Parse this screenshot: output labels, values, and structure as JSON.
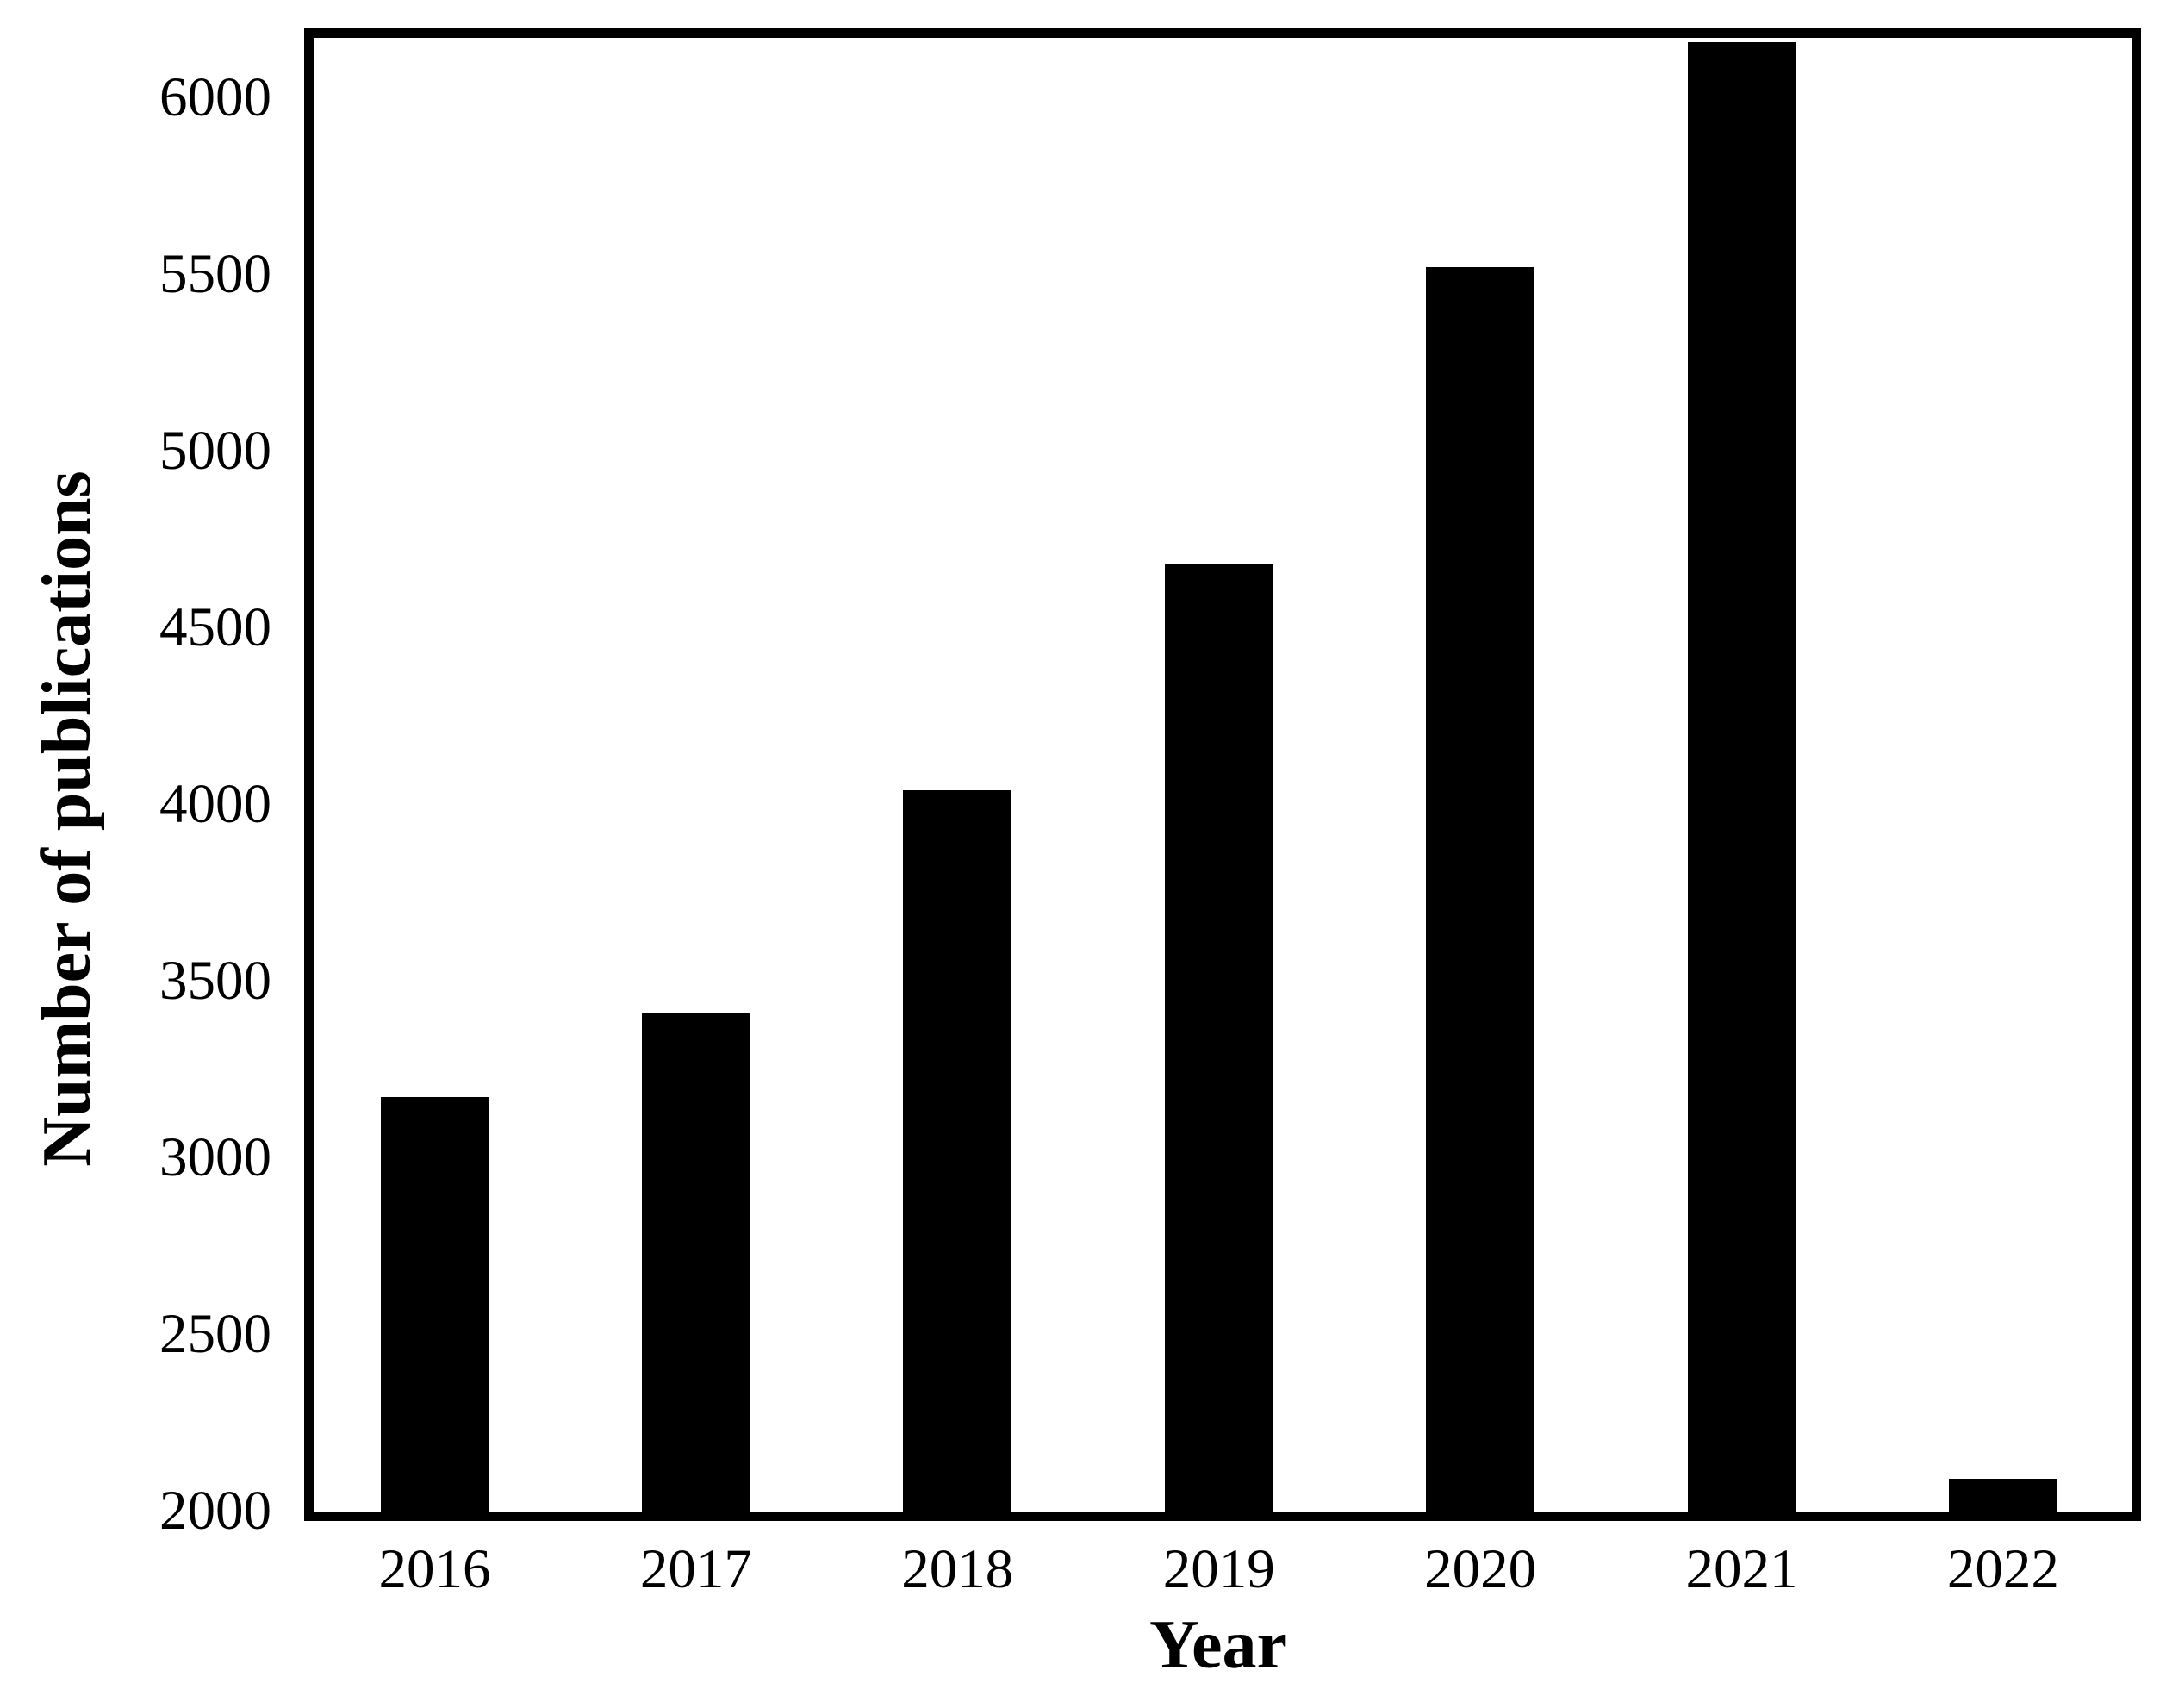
{
  "chart_data": {
    "type": "bar",
    "title": "",
    "xlabel": "Year",
    "ylabel": "Number of publications",
    "categories": [
      "2016",
      "2017",
      "2018",
      "2019",
      "2020",
      "2021",
      "2022"
    ],
    "values": [
      3170,
      3410,
      4040,
      4680,
      5520,
      6155,
      2090
    ],
    "series_name": "Number of publications",
    "y_ticks": [
      2000,
      2500,
      3000,
      3500,
      4000,
      4500,
      5000,
      5500,
      6000
    ],
    "ylim": [
      2000,
      6170
    ],
    "xlim_note": "categorical axis",
    "grid": false,
    "legend_position": "none",
    "bar_color": "#000000",
    "axis_color": "#000000",
    "background_color": "#ffffff"
  }
}
